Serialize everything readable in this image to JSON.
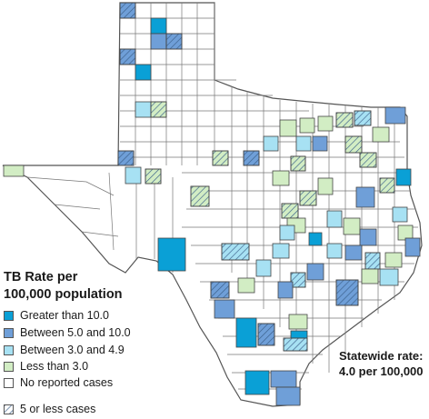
{
  "legend": {
    "title_line1": "TB Rate per",
    "title_line2": "100,000 population",
    "items": [
      {
        "label": "Greater than 10.0",
        "color": "#0aa0d6"
      },
      {
        "label": "Between 5.0 and 10.0",
        "color": "#6f9fd8"
      },
      {
        "label": "Between 3.0 and 4.9",
        "color": "#a7e1f3"
      },
      {
        "label": "Less than 3.0",
        "color": "#d2edc4"
      },
      {
        "label": "No reported cases",
        "color": "#ffffff"
      }
    ],
    "hatch_label": "5 or less cases"
  },
  "statewide": {
    "line1": "Statewide rate:",
    "line2": "4.0 per 100,000"
  },
  "colors": {
    "border": "#555555",
    "hatch": "#3a5f8a"
  }
}
